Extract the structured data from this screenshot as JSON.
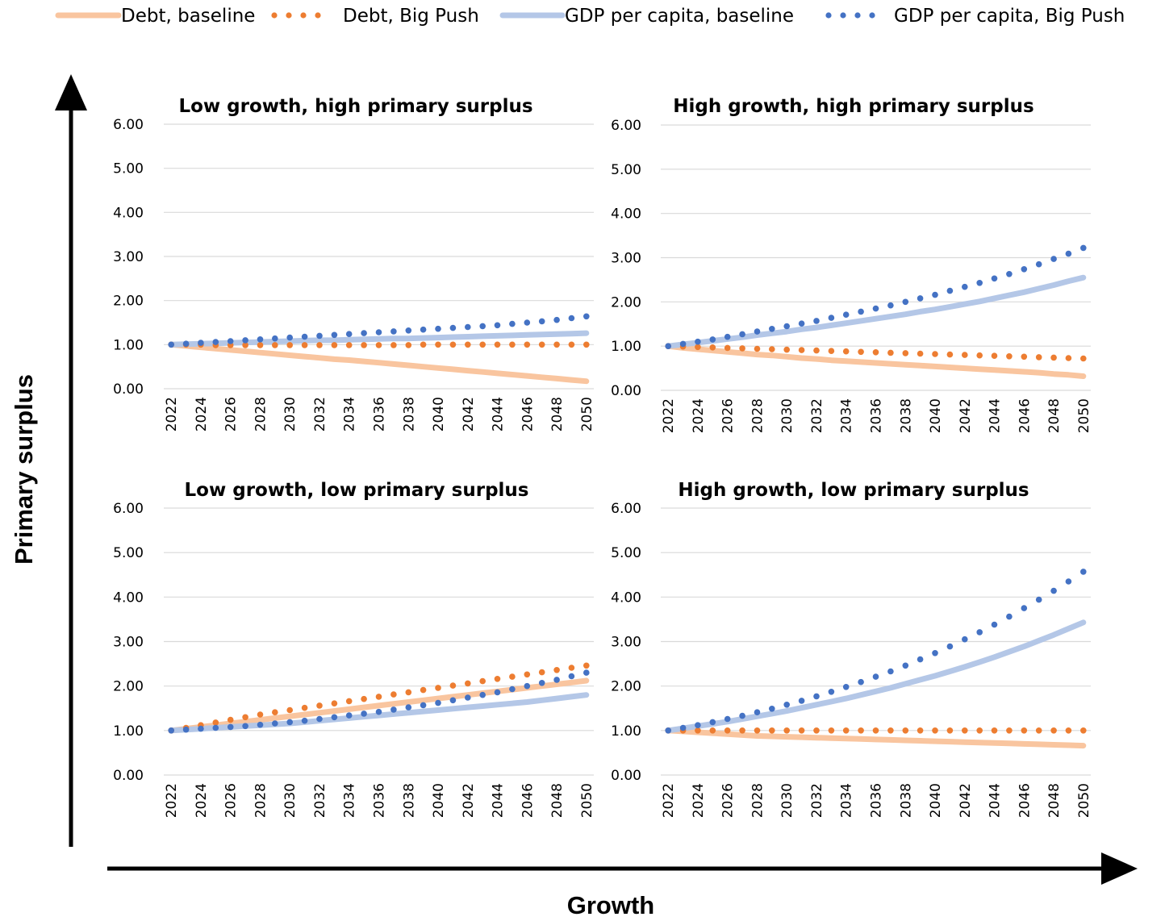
{
  "axis_labels": {
    "y": "Primary surplus",
    "x": "Growth"
  },
  "legend": [
    {
      "name": "Debt, baseline",
      "style": "solid",
      "color": "#f9c59f"
    },
    {
      "name": "Debt, Big Push",
      "style": "dotted",
      "color": "#ed7d31"
    },
    {
      "name": "GDP per capita, baseline",
      "style": "solid",
      "color": "#b4c7e7"
    },
    {
      "name": "GDP per capita, Big Push",
      "style": "dotted",
      "color": "#4472c4"
    }
  ],
  "chart_data": [
    {
      "type": "line",
      "position": "top-left",
      "title": "Low growth, high primary surplus",
      "x": [
        2022,
        2023,
        2024,
        2025,
        2026,
        2027,
        2028,
        2029,
        2030,
        2031,
        2032,
        2033,
        2034,
        2035,
        2036,
        2037,
        2038,
        2039,
        2040,
        2041,
        2042,
        2043,
        2044,
        2045,
        2046,
        2047,
        2048,
        2049,
        2050
      ],
      "x_ticks": [
        "2022",
        "2024",
        "2026",
        "2028",
        "2030",
        "2032",
        "2034",
        "2036",
        "2038",
        "2040",
        "2042",
        "2044",
        "2046",
        "2048",
        "2050"
      ],
      "y_ticks": [
        "0.00",
        "1.00",
        "2.00",
        "3.00",
        "4.00",
        "5.00",
        "6.00"
      ],
      "ylim": [
        0,
        6
      ],
      "grid": true,
      "series": [
        {
          "name": "Debt, baseline",
          "values": [
            1.0,
            0.97,
            0.94,
            0.91,
            0.88,
            0.85,
            0.82,
            0.79,
            0.76,
            0.73,
            0.7,
            0.67,
            0.65,
            0.62,
            0.59,
            0.56,
            0.53,
            0.5,
            0.47,
            0.44,
            0.41,
            0.38,
            0.35,
            0.32,
            0.29,
            0.26,
            0.23,
            0.2,
            0.17
          ]
        },
        {
          "name": "Debt, Big Push",
          "values": [
            1.0,
            1.0,
            1.0,
            0.99,
            0.99,
            0.99,
            0.99,
            0.99,
            0.99,
            0.99,
            0.99,
            0.99,
            0.99,
            0.99,
            0.99,
            0.99,
            0.99,
            1.0,
            1.0,
            1.0,
            1.0,
            1.0,
            1.0,
            1.0,
            1.0,
            1.0,
            1.0,
            1.0,
            1.0
          ]
        },
        {
          "name": "GDP per capita, baseline",
          "values": [
            1.0,
            1.01,
            1.02,
            1.03,
            1.04,
            1.05,
            1.06,
            1.07,
            1.08,
            1.09,
            1.1,
            1.1,
            1.11,
            1.12,
            1.13,
            1.14,
            1.14,
            1.15,
            1.16,
            1.17,
            1.18,
            1.19,
            1.2,
            1.21,
            1.22,
            1.23,
            1.24,
            1.25,
            1.26
          ]
        },
        {
          "name": "GDP per capita, Big Push",
          "values": [
            1.0,
            1.02,
            1.04,
            1.06,
            1.08,
            1.1,
            1.12,
            1.14,
            1.16,
            1.18,
            1.2,
            1.22,
            1.24,
            1.26,
            1.28,
            1.3,
            1.32,
            1.34,
            1.36,
            1.38,
            1.4,
            1.42,
            1.44,
            1.47,
            1.5,
            1.53,
            1.56,
            1.6,
            1.64
          ]
        }
      ]
    },
    {
      "type": "line",
      "position": "top-right",
      "title": "High growth, high primary surplus",
      "x": [
        2022,
        2023,
        2024,
        2025,
        2026,
        2027,
        2028,
        2029,
        2030,
        2031,
        2032,
        2033,
        2034,
        2035,
        2036,
        2037,
        2038,
        2039,
        2040,
        2041,
        2042,
        2043,
        2044,
        2045,
        2046,
        2047,
        2048,
        2049,
        2050
      ],
      "x_ticks": [
        "2022",
        "2024",
        "2026",
        "2028",
        "2030",
        "2032",
        "2034",
        "2036",
        "2038",
        "2040",
        "2042",
        "2044",
        "2046",
        "2048",
        "2050"
      ],
      "y_ticks": [
        "0.00",
        "1.00",
        "2.00",
        "3.00",
        "4.00",
        "5.00",
        "6.00"
      ],
      "ylim": [
        0,
        6
      ],
      "grid": true,
      "series": [
        {
          "name": "Debt, baseline",
          "values": [
            1.0,
            0.96,
            0.93,
            0.9,
            0.87,
            0.84,
            0.81,
            0.79,
            0.76,
            0.73,
            0.71,
            0.68,
            0.66,
            0.64,
            0.62,
            0.6,
            0.58,
            0.56,
            0.54,
            0.52,
            0.5,
            0.48,
            0.46,
            0.44,
            0.42,
            0.4,
            0.37,
            0.35,
            0.32
          ]
        },
        {
          "name": "Debt, Big Push",
          "values": [
            1.0,
            0.99,
            0.98,
            0.97,
            0.96,
            0.95,
            0.94,
            0.93,
            0.92,
            0.91,
            0.9,
            0.89,
            0.88,
            0.87,
            0.86,
            0.85,
            0.84,
            0.83,
            0.82,
            0.81,
            0.8,
            0.79,
            0.78,
            0.77,
            0.76,
            0.75,
            0.74,
            0.73,
            0.72
          ]
        },
        {
          "name": "GDP per capita, baseline",
          "values": [
            1.0,
            1.04,
            1.08,
            1.12,
            1.16,
            1.2,
            1.25,
            1.29,
            1.33,
            1.38,
            1.42,
            1.47,
            1.52,
            1.57,
            1.62,
            1.67,
            1.72,
            1.78,
            1.83,
            1.89,
            1.95,
            2.01,
            2.08,
            2.15,
            2.22,
            2.3,
            2.38,
            2.47,
            2.55
          ]
        },
        {
          "name": "GDP per capita, Big Push",
          "values": [
            1.0,
            1.05,
            1.1,
            1.15,
            1.21,
            1.27,
            1.33,
            1.39,
            1.45,
            1.51,
            1.57,
            1.64,
            1.71,
            1.78,
            1.85,
            1.92,
            2.0,
            2.08,
            2.16,
            2.25,
            2.34,
            2.43,
            2.53,
            2.63,
            2.74,
            2.85,
            2.97,
            3.09,
            3.22
          ]
        }
      ]
    },
    {
      "type": "line",
      "position": "bottom-left",
      "title": "Low growth, low primary surplus",
      "x": [
        2022,
        2023,
        2024,
        2025,
        2026,
        2027,
        2028,
        2029,
        2030,
        2031,
        2032,
        2033,
        2034,
        2035,
        2036,
        2037,
        2038,
        2039,
        2040,
        2041,
        2042,
        2043,
        2044,
        2045,
        2046,
        2047,
        2048,
        2049,
        2050
      ],
      "x_ticks": [
        "2022",
        "2024",
        "2026",
        "2028",
        "2030",
        "2032",
        "2034",
        "2036",
        "2038",
        "2040",
        "2042",
        "2044",
        "2046",
        "2048",
        "2050"
      ],
      "y_ticks": [
        "0.00",
        "1.00",
        "2.00",
        "3.00",
        "4.00",
        "5.00",
        "6.00"
      ],
      "ylim": [
        0,
        6
      ],
      "grid": true,
      "series": [
        {
          "name": "Debt, baseline",
          "values": [
            1.0,
            1.04,
            1.08,
            1.12,
            1.16,
            1.2,
            1.24,
            1.28,
            1.32,
            1.36,
            1.4,
            1.44,
            1.48,
            1.52,
            1.56,
            1.6,
            1.64,
            1.68,
            1.72,
            1.76,
            1.8,
            1.84,
            1.88,
            1.92,
            1.96,
            2.0,
            2.04,
            2.08,
            2.12
          ]
        },
        {
          "name": "Debt, Big Push",
          "values": [
            1.0,
            1.06,
            1.12,
            1.18,
            1.24,
            1.3,
            1.36,
            1.41,
            1.46,
            1.51,
            1.56,
            1.61,
            1.66,
            1.71,
            1.76,
            1.81,
            1.86,
            1.91,
            1.96,
            2.01,
            2.06,
            2.11,
            2.16,
            2.21,
            2.26,
            2.31,
            2.36,
            2.41,
            2.46
          ]
        },
        {
          "name": "GDP per capita, baseline",
          "values": [
            1.0,
            1.02,
            1.04,
            1.06,
            1.08,
            1.1,
            1.12,
            1.14,
            1.16,
            1.19,
            1.22,
            1.25,
            1.28,
            1.31,
            1.34,
            1.37,
            1.4,
            1.43,
            1.46,
            1.49,
            1.52,
            1.55,
            1.58,
            1.61,
            1.64,
            1.68,
            1.72,
            1.76,
            1.8
          ]
        },
        {
          "name": "GDP per capita, Big Push",
          "values": [
            1.0,
            1.02,
            1.04,
            1.06,
            1.08,
            1.1,
            1.13,
            1.16,
            1.19,
            1.22,
            1.26,
            1.3,
            1.34,
            1.38,
            1.42,
            1.47,
            1.52,
            1.57,
            1.62,
            1.68,
            1.74,
            1.8,
            1.86,
            1.93,
            2.0,
            2.07,
            2.14,
            2.22,
            2.3
          ]
        }
      ]
    },
    {
      "type": "line",
      "position": "bottom-right",
      "title": "High growth, low primary surplus",
      "x": [
        2022,
        2023,
        2024,
        2025,
        2026,
        2027,
        2028,
        2029,
        2030,
        2031,
        2032,
        2033,
        2034,
        2035,
        2036,
        2037,
        2038,
        2039,
        2040,
        2041,
        2042,
        2043,
        2044,
        2045,
        2046,
        2047,
        2048,
        2049,
        2050
      ],
      "x_ticks": [
        "2022",
        "2024",
        "2026",
        "2028",
        "2030",
        "2032",
        "2034",
        "2036",
        "2038",
        "2040",
        "2042",
        "2044",
        "2046",
        "2048",
        "2050"
      ],
      "y_ticks": [
        "0.00",
        "1.00",
        "2.00",
        "3.00",
        "4.00",
        "5.00",
        "6.00"
      ],
      "ylim": [
        0,
        6
      ],
      "grid": true,
      "series": [
        {
          "name": "Debt, baseline",
          "values": [
            1.0,
            0.98,
            0.96,
            0.94,
            0.92,
            0.9,
            0.88,
            0.87,
            0.86,
            0.85,
            0.84,
            0.83,
            0.82,
            0.81,
            0.8,
            0.79,
            0.78,
            0.77,
            0.76,
            0.75,
            0.74,
            0.73,
            0.72,
            0.71,
            0.7,
            0.69,
            0.68,
            0.67,
            0.66
          ]
        },
        {
          "name": "Debt, Big Push",
          "values": [
            1.0,
            1.0,
            1.0,
            1.0,
            1.0,
            1.0,
            1.0,
            1.0,
            1.0,
            1.0,
            1.0,
            1.0,
            1.0,
            1.0,
            1.0,
            1.0,
            1.0,
            1.0,
            1.0,
            1.0,
            1.0,
            1.0,
            1.0,
            1.0,
            1.0,
            1.0,
            1.0,
            1.0,
            1.0
          ]
        },
        {
          "name": "GDP per capita, baseline",
          "values": [
            1.0,
            1.05,
            1.1,
            1.15,
            1.2,
            1.26,
            1.32,
            1.38,
            1.44,
            1.51,
            1.58,
            1.65,
            1.72,
            1.8,
            1.88,
            1.96,
            2.05,
            2.14,
            2.23,
            2.33,
            2.43,
            2.54,
            2.65,
            2.77,
            2.89,
            3.02,
            3.15,
            3.29,
            3.43
          ]
        },
        {
          "name": "GDP per capita, Big Push",
          "values": [
            1.0,
            1.06,
            1.12,
            1.19,
            1.26,
            1.33,
            1.41,
            1.49,
            1.58,
            1.67,
            1.77,
            1.87,
            1.98,
            2.09,
            2.21,
            2.33,
            2.46,
            2.6,
            2.74,
            2.89,
            3.05,
            3.21,
            3.38,
            3.56,
            3.75,
            3.94,
            4.14,
            4.35,
            4.57
          ]
        }
      ]
    }
  ]
}
